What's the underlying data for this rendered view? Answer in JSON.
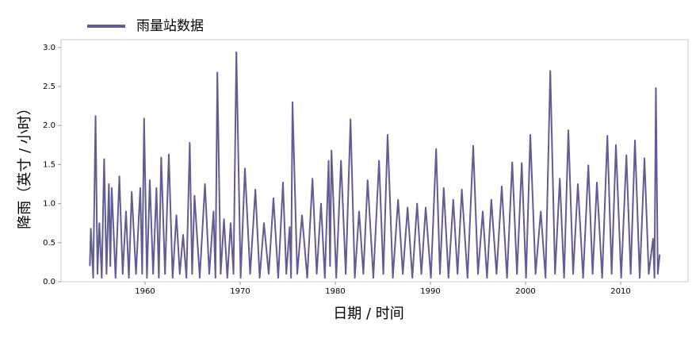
{
  "chart_data": {
    "type": "line",
    "xlabel": "日期 / 时间",
    "ylabel": "降雨（英寸 / 小时）",
    "x": [
      1954.2,
      1954.3,
      1954.55,
      1954.8,
      1955.0,
      1955.2,
      1955.45,
      1955.7,
      1955.95,
      1956.2,
      1956.35,
      1956.5,
      1956.9,
      1957.3,
      1957.65,
      1958.0,
      1958.3,
      1958.6,
      1959.05,
      1959.5,
      1959.7,
      1959.9,
      1960.2,
      1960.5,
      1960.85,
      1961.2,
      1961.45,
      1961.7,
      1962.1,
      1962.5,
      1962.9,
      1963.3,
      1963.65,
      1964.0,
      1964.35,
      1964.7,
      1964.95,
      1965.2,
      1965.75,
      1966.3,
      1966.75,
      1967.2,
      1967.4,
      1967.6,
      1967.95,
      1968.3,
      1968.65,
      1969.0,
      1969.3,
      1969.6,
      1970.05,
      1970.5,
      1971.05,
      1971.6,
      1972.05,
      1972.5,
      1973.0,
      1973.5,
      1974.0,
      1974.5,
      1974.85,
      1975.2,
      1975.35,
      1975.5,
      1976.0,
      1976.5,
      1977.05,
      1977.6,
      1978.05,
      1978.5,
      1978.9,
      1979.3,
      1979.45,
      1979.6,
      1980.1,
      1980.6,
      1981.1,
      1981.6,
      1982.05,
      1982.5,
      1982.95,
      1983.4,
      1984.0,
      1984.6,
      1985.05,
      1985.5,
      1986.05,
      1986.6,
      1987.1,
      1987.6,
      1988.1,
      1988.6,
      1989.05,
      1989.5,
      1990.05,
      1990.6,
      1991.0,
      1991.4,
      1991.9,
      1992.4,
      1992.85,
      1993.3,
      1993.9,
      1994.5,
      1995.0,
      1995.5,
      1995.95,
      1996.4,
      1996.95,
      1997.5,
      1998.05,
      1998.6,
      1999.1,
      1999.6,
      2000.05,
      2000.5,
      2001.05,
      2001.6,
      2002.1,
      2002.6,
      2003.1,
      2003.6,
      2004.05,
      2004.5,
      2005.0,
      2005.5,
      2006.05,
      2006.6,
      2007.05,
      2007.5,
      2008.05,
      2008.6,
      2009.05,
      2009.5,
      2010.05,
      2010.6,
      2011.05,
      2011.5,
      2012.0,
      2012.5,
      2012.95,
      2013.4,
      2013.55,
      2013.7,
      2013.9,
      2014.1
    ],
    "series": [
      {
        "name": "雨量站数据",
        "color": "#625c94",
        "values": [
          0.2,
          0.68,
          0.05,
          2.12,
          0.1,
          0.75,
          0.05,
          1.57,
          0.1,
          1.25,
          0.2,
          1.2,
          0.05,
          1.35,
          0.1,
          0.9,
          0.05,
          1.15,
          0.1,
          1.2,
          0.1,
          2.09,
          0.05,
          1.3,
          0.1,
          1.2,
          0.05,
          1.59,
          0.1,
          1.63,
          0.05,
          0.85,
          0.1,
          0.6,
          0.05,
          1.78,
          0.1,
          1.1,
          0.05,
          1.25,
          0.1,
          0.9,
          0.05,
          2.68,
          0.1,
          0.8,
          0.05,
          0.75,
          0.1,
          2.94,
          0.05,
          1.45,
          0.1,
          1.18,
          0.05,
          0.75,
          0.1,
          1.07,
          0.05,
          1.27,
          0.1,
          0.7,
          0.05,
          2.3,
          0.1,
          0.85,
          0.05,
          1.32,
          0.1,
          1.0,
          0.05,
          1.55,
          0.2,
          1.68,
          0.05,
          1.55,
          0.1,
          2.08,
          0.05,
          0.9,
          0.1,
          1.3,
          0.05,
          1.55,
          0.1,
          1.88,
          0.05,
          1.05,
          0.1,
          0.95,
          0.05,
          1.0,
          0.1,
          0.95,
          0.05,
          1.7,
          0.1,
          1.2,
          0.05,
          1.05,
          0.1,
          1.18,
          0.05,
          1.74,
          0.1,
          0.9,
          0.05,
          1.05,
          0.1,
          1.22,
          0.05,
          1.53,
          0.1,
          1.52,
          0.05,
          1.88,
          0.1,
          0.9,
          0.05,
          2.7,
          0.1,
          1.32,
          0.05,
          1.94,
          0.1,
          1.25,
          0.05,
          1.49,
          0.1,
          1.27,
          0.05,
          1.87,
          0.1,
          1.75,
          0.05,
          1.62,
          0.1,
          1.81,
          0.05,
          1.58,
          0.1,
          0.55,
          0.05,
          2.48,
          0.1,
          0.35
        ]
      }
    ],
    "xlim": [
      1951.17,
      2017.08
    ],
    "xticks": [
      1960,
      1970,
      1980,
      1990,
      2000,
      2010
    ],
    "ylim": [
      0,
      3.1
    ],
    "yticks": [
      {
        "value": 0,
        "label": "0.0"
      },
      {
        "value": 0.5,
        "label": "0.5"
      },
      {
        "value": 1,
        "label": "1.0"
      },
      {
        "value": 1.5,
        "label": "1.5"
      },
      {
        "value": 2,
        "label": "2.0"
      },
      {
        "value": 2.5,
        "label": "2.5"
      },
      {
        "value": 3,
        "label": "3.0"
      }
    ],
    "legend": "top-left",
    "grid": false
  }
}
